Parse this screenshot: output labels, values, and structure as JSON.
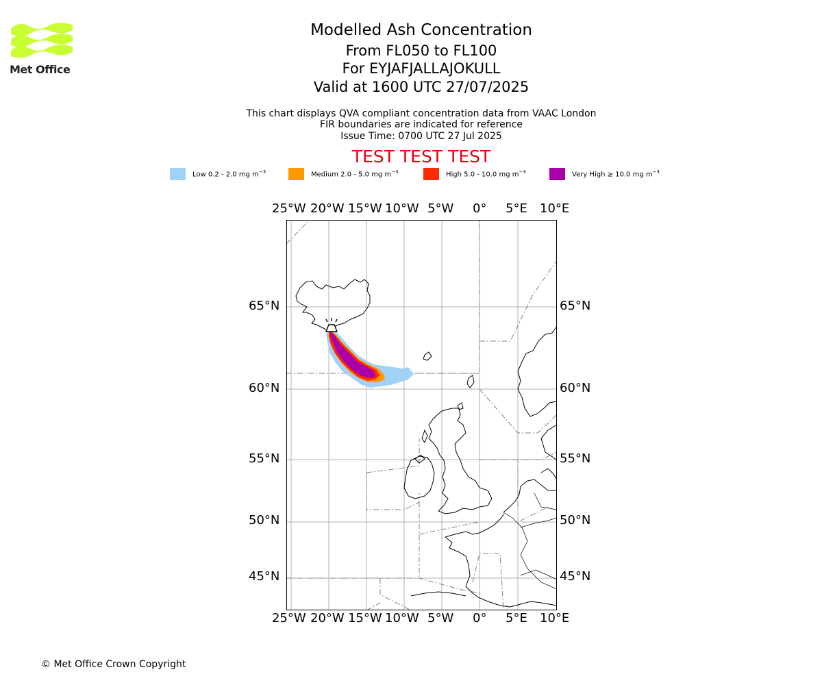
{
  "brand": {
    "logo_text": "Met Office",
    "logo_color": "#c8ff32"
  },
  "title": {
    "line1": "Modelled Ash Concentration",
    "line2": "From FL050 to FL100",
    "line3": "For EYJAFJALLAJOKULL",
    "line4": "Valid at 1600 UTC 27/07/2025"
  },
  "subtitle": {
    "line1": "This chart displays QVA compliant concentration data from VAAC London",
    "line2": "FIR boundaries are indicated for reference",
    "line3": "Issue Time: 0700 UTC 27 Jul 2025"
  },
  "banner": "TEST TEST TEST",
  "legend": [
    {
      "label": "Low 0.2 - 2.0 mg m",
      "unit_exp": "−3",
      "color": "#a0d2f8"
    },
    {
      "label": "Medium 2.0 - 5.0 mg m",
      "unit_exp": "−3",
      "color": "#ff9900"
    },
    {
      "label": "High 5.0 - 10.0 mg m",
      "unit_exp": "−3",
      "color": "#ff2a00"
    },
    {
      "label": "Very High  ≥  10.0 mg m",
      "unit_exp": "−3",
      "color": "#aa00aa"
    }
  ],
  "map": {
    "lon_labels": [
      "25°W",
      "20°W",
      "15°W",
      "10°W",
      "5°W",
      "0°",
      "5°E",
      "10°E"
    ],
    "lat_labels": [
      "65°N",
      "60°N",
      "55°N",
      "50°N",
      "45°N"
    ],
    "volcano_icon": "volcano-icon",
    "gridline_color": "#b0b0b0",
    "fir_color": "#808080"
  },
  "footer": {
    "copyright": "© Met Office Crown Copyright"
  }
}
